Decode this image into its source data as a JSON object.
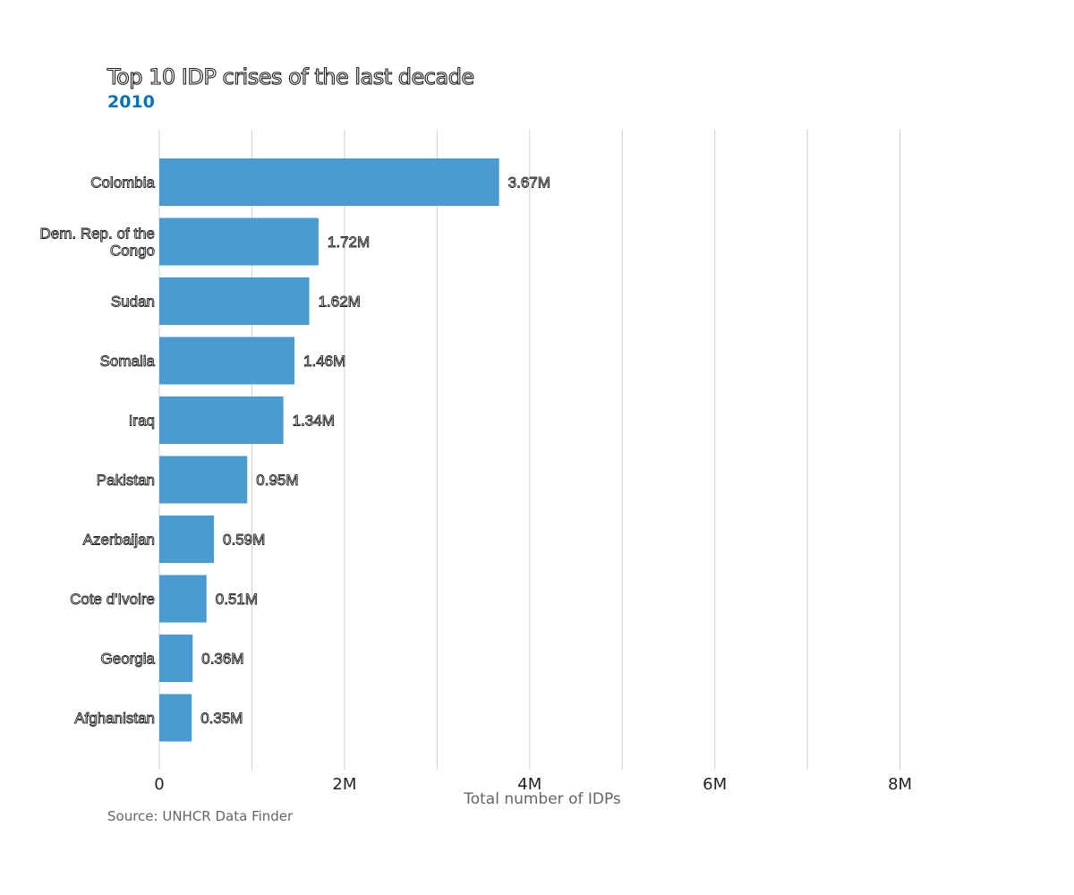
{
  "chart_data": {
    "type": "bar",
    "orientation": "horizontal",
    "title": "Top 10 IDP crises of the last decade",
    "subtitle": "2010",
    "source": "Source: UNHCR Data Finder",
    "xlabel": "Total number of IDPs",
    "xlim": [
      0,
      9000000
    ],
    "grid": true,
    "x_ticks": [
      {
        "value": 0,
        "label": "0"
      },
      {
        "value": 2000000,
        "label": "2M"
      },
      {
        "value": 4000000,
        "label": "4M"
      },
      {
        "value": 6000000,
        "label": "6M"
      },
      {
        "value": 8000000,
        "label": "8M"
      }
    ],
    "gridlines": [
      0,
      1000000,
      2000000,
      3000000,
      4000000,
      5000000,
      6000000,
      7000000,
      8000000
    ],
    "bar_color": "#4a9bd1",
    "subtitle_color": "#0072bc",
    "categories": [
      [
        "Colombia"
      ],
      [
        "Dem. Rep. of the",
        "Congo"
      ],
      [
        "Sudan"
      ],
      [
        "Somalia"
      ],
      [
        "Iraq"
      ],
      [
        "Pakistan"
      ],
      [
        "Azerbaijan"
      ],
      [
        "Cote d'Ivoire"
      ],
      [
        "Georgia"
      ],
      [
        "Afghanistan"
      ]
    ],
    "values": [
      3670000,
      1720000,
      1620000,
      1460000,
      1340000,
      950000,
      590000,
      510000,
      360000,
      350000
    ],
    "value_labels": [
      "3.67M",
      "1.72M",
      "1.62M",
      "1.46M",
      "1.34M",
      "0.95M",
      "0.59M",
      "0.51M",
      "0.36M",
      "0.35M"
    ]
  }
}
